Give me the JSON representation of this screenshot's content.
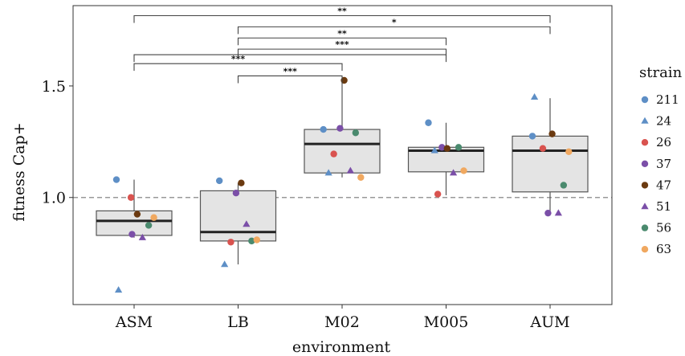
{
  "chart_data": {
    "type": "box",
    "xlabel": "environment",
    "ylabel": "fitness Cap+",
    "categories": [
      "ASM",
      "LB",
      "M02",
      "M005",
      "AUM"
    ],
    "y_ticks": [
      "1.0",
      "1.5"
    ],
    "y_tick_values": [
      1.0,
      1.5
    ],
    "ylim": [
      0.52,
      1.86
    ],
    "reference_line": 1.0,
    "boxes": [
      {
        "category": "ASM",
        "q1": 0.83,
        "median": 0.895,
        "q3": 0.94,
        "whisker_low": 0.82,
        "whisker_high": 1.08
      },
      {
        "category": "LB",
        "q1": 0.805,
        "median": 0.845,
        "q3": 1.03,
        "whisker_low": 0.7,
        "whisker_high": 1.065
      },
      {
        "category": "M02",
        "q1": 1.11,
        "median": 1.24,
        "q3": 1.305,
        "whisker_low": 1.09,
        "whisker_high": 1.52
      },
      {
        "category": "M005",
        "q1": 1.115,
        "median": 1.21,
        "q3": 1.225,
        "whisker_low": 1.01,
        "whisker_high": 1.335
      },
      {
        "category": "AUM",
        "q1": 1.025,
        "median": 1.21,
        "q3": 1.275,
        "whisker_low": 0.93,
        "whisker_high": 1.445
      }
    ],
    "legend": {
      "title": "strain",
      "entries": [
        {
          "label": "211",
          "shape": "circle",
          "color": "#5e8fc6"
        },
        {
          "label": "24",
          "shape": "triangle",
          "color": "#5e8fc6"
        },
        {
          "label": "26",
          "shape": "circle",
          "color": "#d9534f"
        },
        {
          "label": "37",
          "shape": "circle",
          "color": "#7b4fa8"
        },
        {
          "label": "47",
          "shape": "circle",
          "color": "#6b3a10"
        },
        {
          "label": "51",
          "shape": "triangle",
          "color": "#7b4fa8"
        },
        {
          "label": "56",
          "shape": "circle",
          "color": "#4a8a6e"
        },
        {
          "label": "63",
          "shape": "circle",
          "color": "#f0a860"
        }
      ]
    },
    "points": [
      {
        "category": "ASM",
        "strain": "211",
        "offset": -0.17,
        "y": 1.08
      },
      {
        "category": "ASM",
        "strain": "24",
        "offset": -0.15,
        "y": 0.585
      },
      {
        "category": "ASM",
        "strain": "26",
        "offset": -0.03,
        "y": 1.0
      },
      {
        "category": "ASM",
        "strain": "37",
        "offset": -0.02,
        "y": 0.835
      },
      {
        "category": "ASM",
        "strain": "47",
        "offset": 0.03,
        "y": 0.925
      },
      {
        "category": "ASM",
        "strain": "51",
        "offset": 0.08,
        "y": 0.82
      },
      {
        "category": "ASM",
        "strain": "56",
        "offset": 0.14,
        "y": 0.875
      },
      {
        "category": "ASM",
        "strain": "63",
        "offset": 0.19,
        "y": 0.91
      },
      {
        "category": "LB",
        "strain": "211",
        "offset": -0.18,
        "y": 1.075
      },
      {
        "category": "LB",
        "strain": "24",
        "offset": -0.13,
        "y": 0.7
      },
      {
        "category": "LB",
        "strain": "26",
        "offset": -0.07,
        "y": 0.8
      },
      {
        "category": "LB",
        "strain": "37",
        "offset": -0.02,
        "y": 1.02
      },
      {
        "category": "LB",
        "strain": "47",
        "offset": 0.03,
        "y": 1.065
      },
      {
        "category": "LB",
        "strain": "51",
        "offset": 0.08,
        "y": 0.88
      },
      {
        "category": "LB",
        "strain": "56",
        "offset": 0.13,
        "y": 0.805
      },
      {
        "category": "LB",
        "strain": "63",
        "offset": 0.18,
        "y": 0.81
      },
      {
        "category": "M02",
        "strain": "211",
        "offset": -0.18,
        "y": 1.305
      },
      {
        "category": "M02",
        "strain": "24",
        "offset": -0.13,
        "y": 1.11
      },
      {
        "category": "M02",
        "strain": "26",
        "offset": -0.08,
        "y": 1.195
      },
      {
        "category": "M02",
        "strain": "37",
        "offset": -0.02,
        "y": 1.31
      },
      {
        "category": "M02",
        "strain": "47",
        "offset": 0.02,
        "y": 1.525
      },
      {
        "category": "M02",
        "strain": "51",
        "offset": 0.08,
        "y": 1.12
      },
      {
        "category": "M02",
        "strain": "56",
        "offset": 0.13,
        "y": 1.29
      },
      {
        "category": "M02",
        "strain": "63",
        "offset": 0.18,
        "y": 1.09
      },
      {
        "category": "M005",
        "strain": "211",
        "offset": -0.17,
        "y": 1.335
      },
      {
        "category": "M005",
        "strain": "24",
        "offset": -0.11,
        "y": 1.21
      },
      {
        "category": "M005",
        "strain": "26",
        "offset": -0.08,
        "y": 1.015
      },
      {
        "category": "M005",
        "strain": "37",
        "offset": -0.04,
        "y": 1.225
      },
      {
        "category": "M005",
        "strain": "47",
        "offset": 0.01,
        "y": 1.22
      },
      {
        "category": "M005",
        "strain": "51",
        "offset": 0.07,
        "y": 1.11
      },
      {
        "category": "M005",
        "strain": "56",
        "offset": 0.12,
        "y": 1.225
      },
      {
        "category": "M005",
        "strain": "63",
        "offset": 0.17,
        "y": 1.12
      },
      {
        "category": "AUM",
        "strain": "211",
        "offset": -0.17,
        "y": 1.275
      },
      {
        "category": "AUM",
        "strain": "24",
        "offset": -0.15,
        "y": 1.45
      },
      {
        "category": "AUM",
        "strain": "26",
        "offset": -0.07,
        "y": 1.22
      },
      {
        "category": "AUM",
        "strain": "37",
        "offset": -0.02,
        "y": 0.93
      },
      {
        "category": "AUM",
        "strain": "47",
        "offset": 0.02,
        "y": 1.285
      },
      {
        "category": "AUM",
        "strain": "51",
        "offset": 0.08,
        "y": 0.93
      },
      {
        "category": "AUM",
        "strain": "56",
        "offset": 0.13,
        "y": 1.055
      },
      {
        "category": "AUM",
        "strain": "63",
        "offset": 0.18,
        "y": 1.205
      }
    ],
    "significance": [
      {
        "from": "ASM",
        "to": "AUM",
        "label": "**",
        "level": 1.815
      },
      {
        "from": "LB",
        "to": "AUM",
        "label": "*",
        "level": 1.765
      },
      {
        "from": "LB",
        "to": "M005",
        "label": "**",
        "level": 1.715
      },
      {
        "from": "LB",
        "to": "M005",
        "label": "***",
        "level": 1.665
      },
      {
        "from": "ASM",
        "to": "M005",
        "label": "",
        "level": 1.64
      },
      {
        "from": "ASM",
        "to": "M02",
        "label": "***",
        "level": 1.6
      },
      {
        "from": "LB",
        "to": "M02",
        "label": "***",
        "level": 1.545
      }
    ]
  }
}
